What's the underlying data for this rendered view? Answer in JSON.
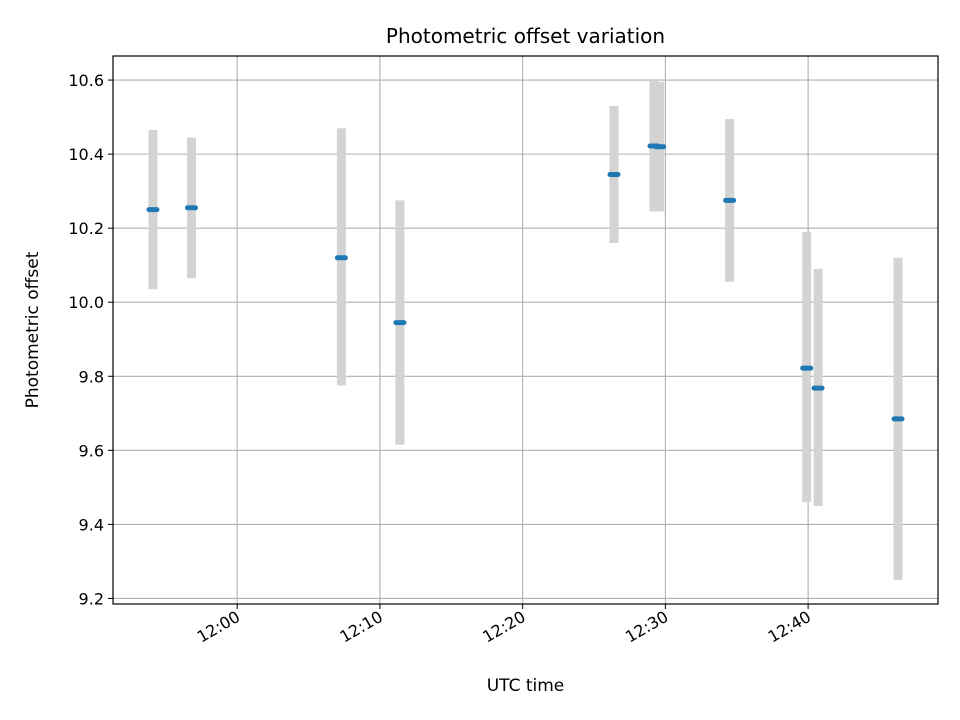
{
  "chart_data": {
    "type": "scatter",
    "title": "Photometric offset variation",
    "xlabel": "UTC time",
    "ylabel": "Photometric offset",
    "grid": true,
    "x_tick_labels": [
      "12:00",
      "12:10",
      "12:20",
      "12:30",
      "12:40"
    ],
    "y_tick_labels": [
      "9.2",
      "9.4",
      "9.6",
      "9.8",
      "10.0",
      "10.2",
      "10.4",
      "10.6"
    ],
    "xlim": [
      "11:51:18",
      "12:49:06"
    ],
    "ylim": [
      9.185,
      10.665
    ],
    "series": [
      {
        "points": [
          {
            "x": "11:54:06",
            "y": 10.25,
            "err_low": 10.035,
            "err_high": 10.465
          },
          {
            "x": "11:56:48",
            "y": 10.255,
            "err_low": 10.065,
            "err_high": 10.445
          },
          {
            "x": "12:07:18",
            "y": 10.12,
            "err_low": 9.775,
            "err_high": 10.47
          },
          {
            "x": "12:11:24",
            "y": 9.945,
            "err_low": 9.615,
            "err_high": 10.275
          },
          {
            "x": "12:26:24",
            "y": 10.345,
            "err_low": 10.16,
            "err_high": 10.53
          },
          {
            "x": "12:29:12",
            "y": 10.422,
            "err_low": 10.245,
            "err_high": 10.6
          },
          {
            "x": "12:29:36",
            "y": 10.42,
            "err_low": 10.245,
            "err_high": 10.595
          },
          {
            "x": "12:34:30",
            "y": 10.275,
            "err_low": 10.055,
            "err_high": 10.495
          },
          {
            "x": "12:39:54",
            "y": 9.822,
            "err_low": 9.46,
            "err_high": 10.19
          },
          {
            "x": "12:40:42",
            "y": 9.768,
            "err_low": 9.45,
            "err_high": 10.09
          },
          {
            "x": "12:46:18",
            "y": 9.685,
            "err_low": 9.25,
            "err_high": 10.12
          }
        ]
      }
    ]
  },
  "colors": {
    "marker": "#1f77b4",
    "errorbar": "#d3d3d3",
    "grid": "#b0b0b0",
    "axes": "#000000"
  }
}
